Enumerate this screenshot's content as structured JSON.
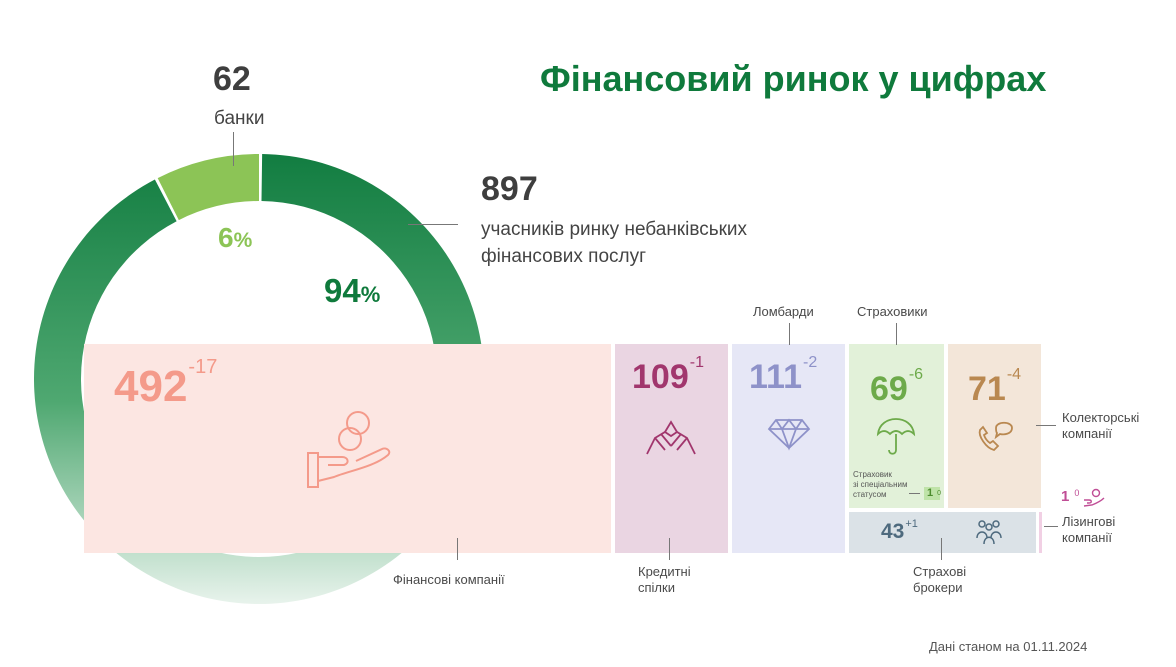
{
  "title": "Фінансовий ринок у цифрах",
  "banks": {
    "count": "62",
    "label": "банки",
    "percent": "6",
    "pct_sign": "%"
  },
  "nonbank": {
    "count": "897",
    "label_line1": "учасників ринку небанківських",
    "label_line2": "фінансових послуг",
    "percent": "94",
    "pct_sign": "%"
  },
  "date_note": "Дані станом на 01.11.2024",
  "colors": {
    "brand_green": "#0f7a3c",
    "light_green": "#8cc456",
    "fin_companies": "#f49a8a",
    "credit_unions": "#a1366d",
    "pawnshops": "#8e92c9",
    "insurers": "#6daa4a",
    "collectors": "#b98850",
    "brokers": "#4e6a7e",
    "leasing": "#c04e96"
  },
  "segments": {
    "fin_companies": {
      "value": "492",
      "change": "-17",
      "label": "Фінансові компанії",
      "icon": "coin-hand-icon"
    },
    "credit_unions": {
      "value": "109",
      "change": "-1",
      "label_line1": "Кредитні",
      "label_line2": "спілки",
      "icon": "handshake-icon"
    },
    "pawnshops": {
      "value": "111",
      "change": "-2",
      "label": "Ломбарди",
      "icon": "diamond-icon"
    },
    "insurers": {
      "value": "69",
      "change": "-6",
      "label": "Страховики",
      "icon": "umbrella-icon",
      "special_line1": "Страховик",
      "special_line2": "зі спеціальним",
      "special_line3": "статусом",
      "special_value": "1",
      "special_change": "0"
    },
    "collectors": {
      "value": "71",
      "change": "-4",
      "label_line1": "Колекторські",
      "label_line2": "компанії",
      "icon": "phone-chat-icon"
    },
    "brokers": {
      "value": "43",
      "change": "+1",
      "label_line1": "Страхові",
      "label_line2": "брокери",
      "icon": "people-icon"
    },
    "leasing": {
      "value": "1",
      "change": "0",
      "label_line1": "Лізингові",
      "label_line2": "компанії",
      "icon": "hand-coin-icon"
    }
  },
  "chart_data": {
    "type": "pie",
    "title": "Фінансовий ринок у цифрах",
    "categories": [
      "банки",
      "учасників ринку небанківських фінансових послуг"
    ],
    "values": [
      62,
      897
    ],
    "percentages": [
      6,
      94
    ],
    "breakdown": {
      "categories": [
        "Фінансові компанії",
        "Кредитні спілки",
        "Ломбарди",
        "Страховики",
        "Колекторські компанії",
        "Страхові брокери",
        "Лізингові компанії",
        "Страховик зі спеціальним статусом"
      ],
      "values": [
        492,
        109,
        111,
        69,
        71,
        43,
        1,
        1
      ],
      "changes": [
        -17,
        -1,
        -2,
        -6,
        -4,
        1,
        0,
        0
      ]
    }
  }
}
